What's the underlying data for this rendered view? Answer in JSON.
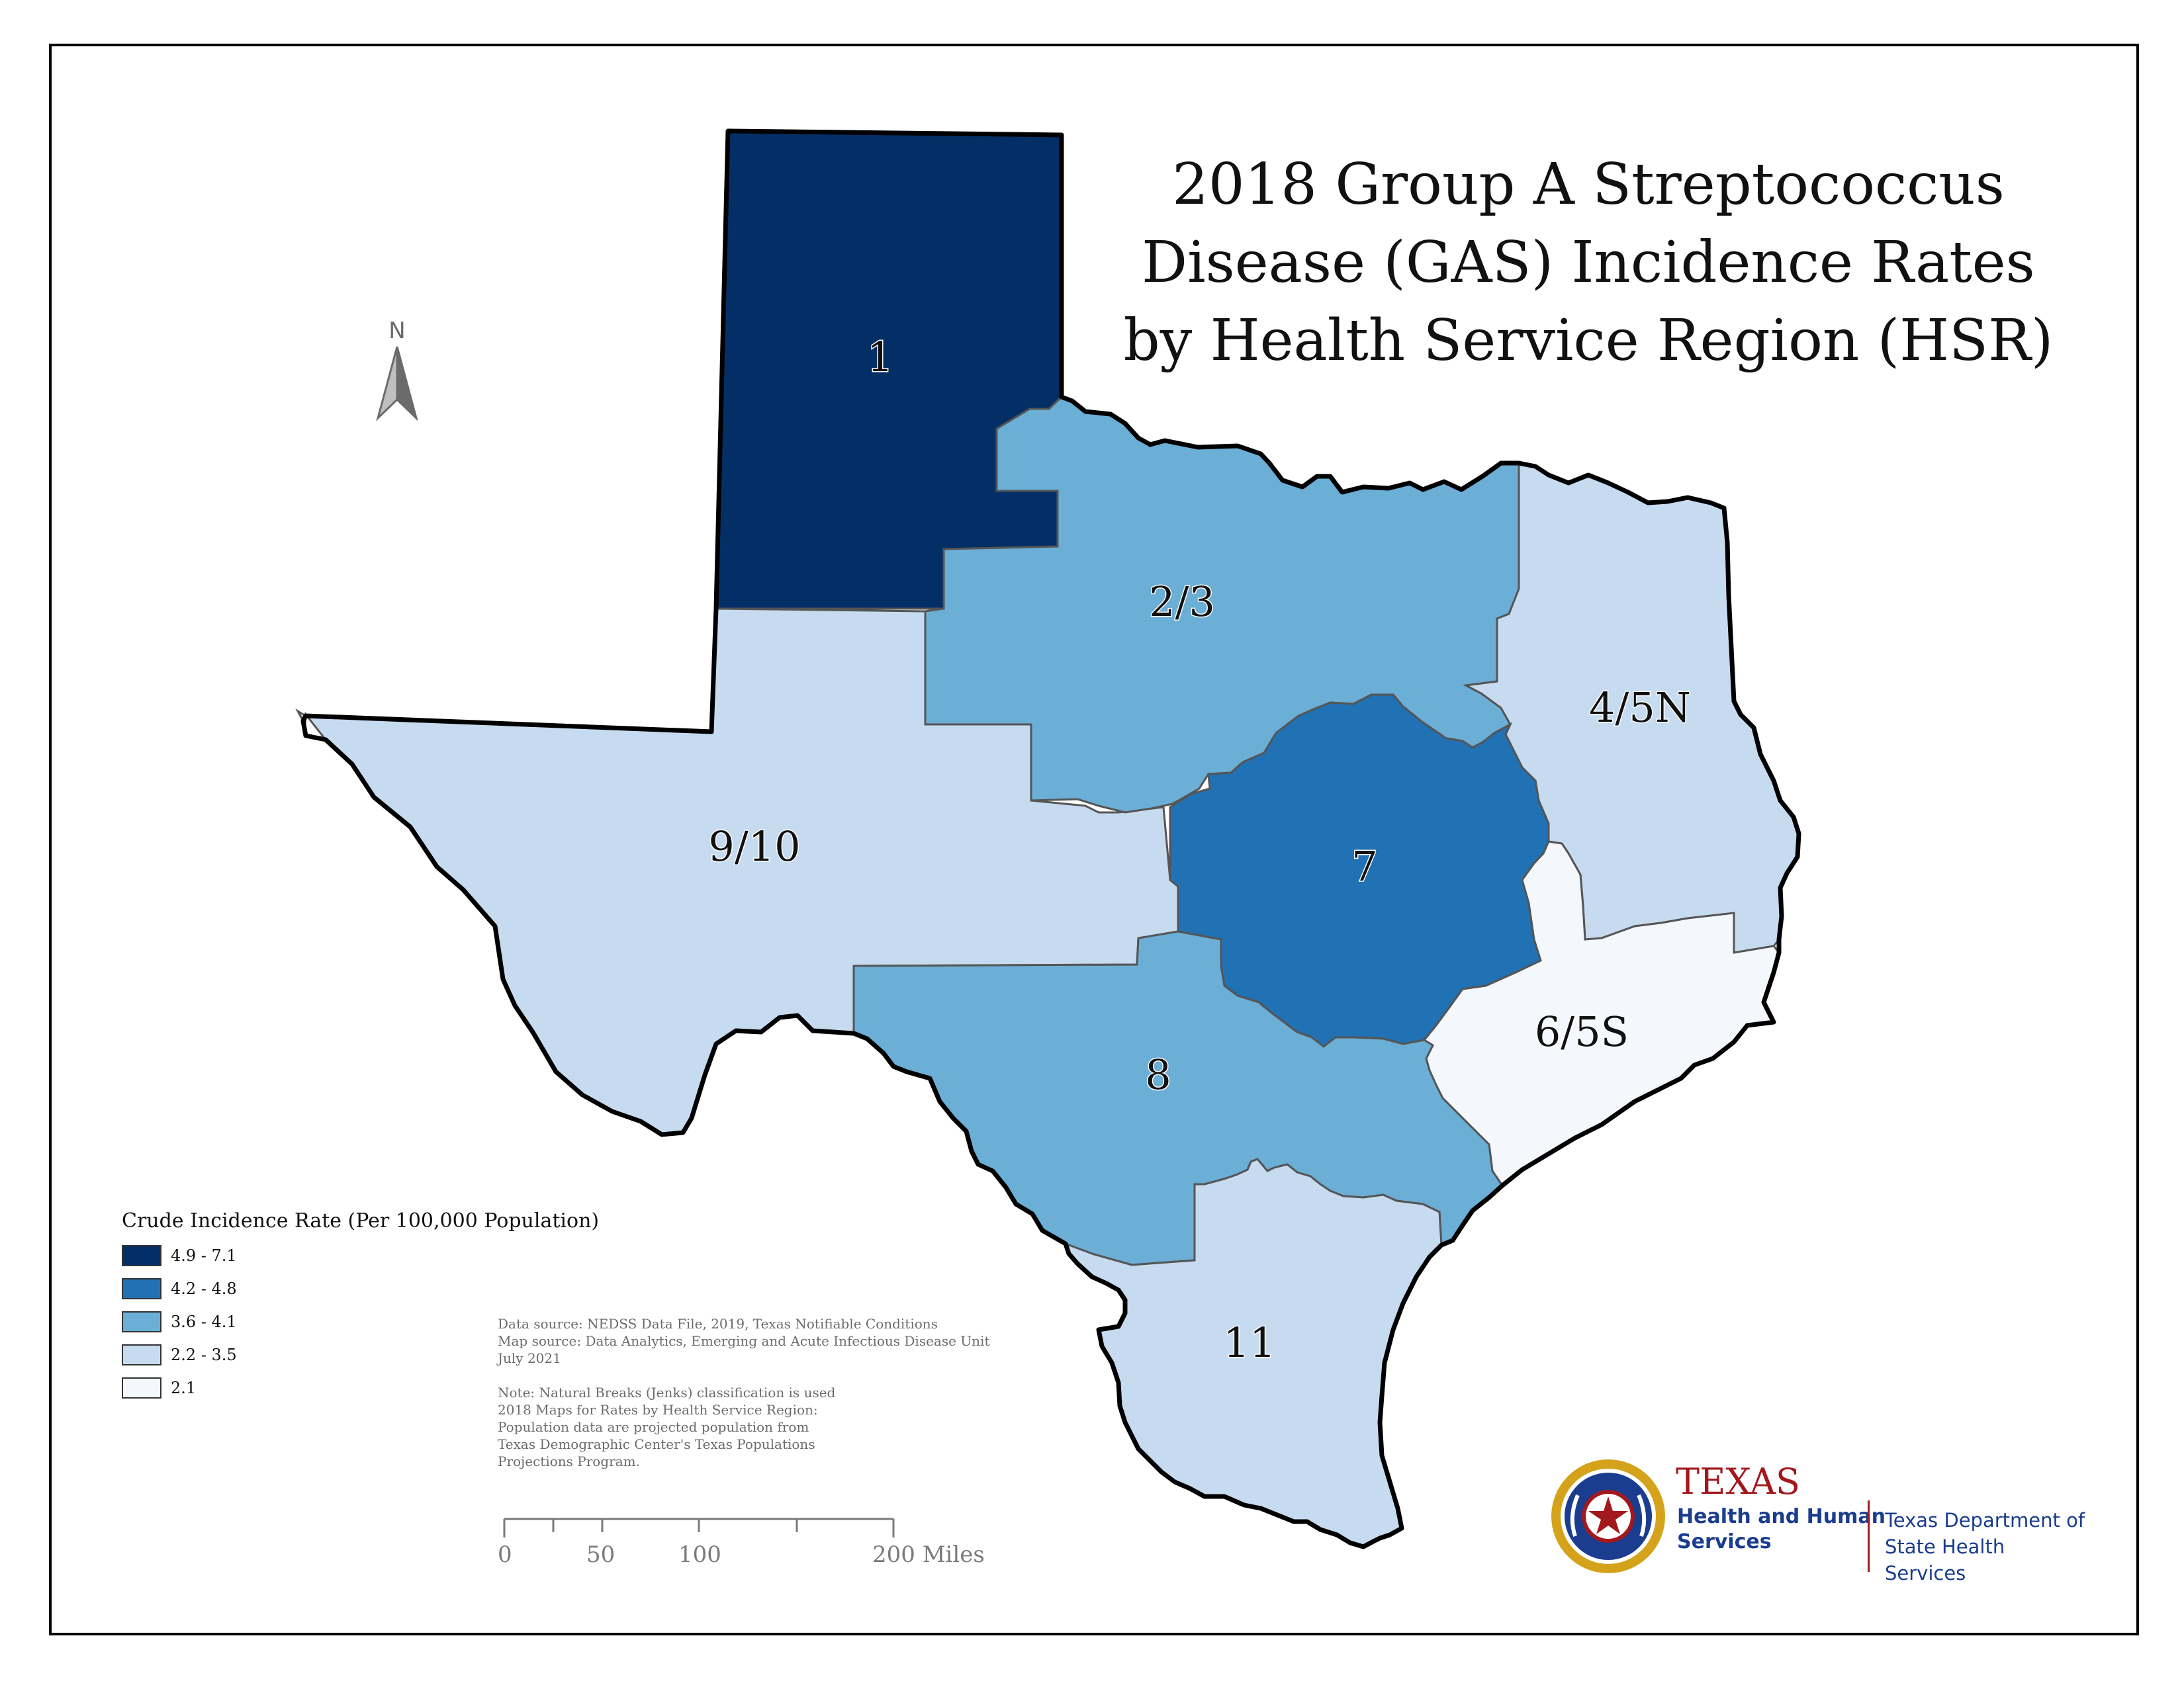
{
  "title": {
    "line1": "2018 Group A Streptococcus",
    "line2": "Disease (GAS) Incidence Rates",
    "line3": "by Health Service Region (HSR)"
  },
  "north_arrow": {
    "label": "N"
  },
  "legend": {
    "title": "Crude Incidence Rate (Per 100,000 Population)",
    "classes": [
      {
        "label": "4.9 - 7.1",
        "color": "#042f66"
      },
      {
        "label": "4.2 - 4.8",
        "color": "#2171b5"
      },
      {
        "label": "3.6 - 4.1",
        "color": "#6baed6"
      },
      {
        "label": "2.2 - 3.5",
        "color": "#c6dbef"
      },
      {
        "label": "2.1",
        "color": "#f4f8fd"
      }
    ]
  },
  "regions": [
    {
      "name": "1",
      "class": 0
    },
    {
      "name": "2/3",
      "class": 2
    },
    {
      "name": "4/5N",
      "class": 3
    },
    {
      "name": "6/5S",
      "class": 4
    },
    {
      "name": "7",
      "class": 1
    },
    {
      "name": "8",
      "class": 2
    },
    {
      "name": "9/10",
      "class": 3
    },
    {
      "name": "11",
      "class": 3
    }
  ],
  "notes": {
    "source1": "Data source: NEDSS Data File, 2019, Texas Notifiable Conditions",
    "source2": "Map source: Data Analytics, Emerging and Acute Infectious Disease Unit",
    "source3": "July 2021",
    "note1": "Note:  Natural Breaks (Jenks) classification is used",
    "note2": "2018 Maps for Rates by Health Service Region:",
    "note3": "Population data are projected population from",
    "note4": "Texas Demographic Center's Texas Populations",
    "note5": "Projections Program."
  },
  "scale_bar": {
    "labels": [
      "0",
      "50",
      "100",
      "200 Miles"
    ]
  },
  "logo": {
    "agency": "TEXAS",
    "line1": "Health and Human",
    "line2": "Services",
    "dept1": "Texas Department of",
    "dept2": "State Health Services"
  }
}
